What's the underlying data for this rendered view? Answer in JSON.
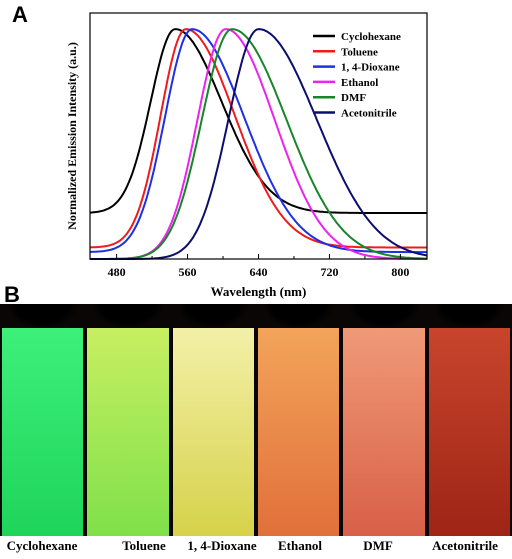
{
  "panel_a_label": "A",
  "panel_b_label": "B",
  "chart_data": {
    "type": "line",
    "title": "",
    "xlabel": "Wavelength (nm)",
    "ylabel": "Normalized Emission Intensity (a.u.)",
    "xlim": [
      450,
      830
    ],
    "ylim": [
      0,
      1.07
    ],
    "xticks": [
      480,
      560,
      640,
      720,
      800
    ],
    "grid": false,
    "legend_position": "top-right",
    "series": [
      {
        "name": "Cyclohexane",
        "color": "#000000",
        "peak": 546,
        "w_left": 39,
        "w_right": 74,
        "baseline": 0.2
      },
      {
        "name": "Toluene",
        "color": "#ee1c1c",
        "peak": 558,
        "w_left": 40,
        "w_right": 78,
        "baseline": 0.05
      },
      {
        "name": "1, 4-Dioxane",
        "color": "#1f2fe6",
        "peak": 565,
        "w_left": 43,
        "w_right": 83,
        "baseline": 0.03
      },
      {
        "name": "Ethanol",
        "color": "#ee22ee",
        "peak": 603,
        "w_left": 45,
        "w_right": 78,
        "baseline": 0.0
      },
      {
        "name": "DMF",
        "color": "#18852a",
        "peak": 610,
        "w_left": 48,
        "w_right": 87,
        "baseline": 0.0
      },
      {
        "name": "Acetonitrile",
        "color": "#0c0e6e",
        "peak": 640,
        "w_left": 48,
        "w_right": 93,
        "baseline": 0.0
      }
    ]
  },
  "vials": [
    {
      "label": "Cyclohexane",
      "color_top": "#3cf07a",
      "color_bottom": "#1fd45a"
    },
    {
      "label": "Toluene",
      "color_top": "#c8ef62",
      "color_bottom": "#7fe04a"
    },
    {
      "label": "1, 4-Dioxane",
      "color_top": "#f3f0a8",
      "color_bottom": "#d6d24a"
    },
    {
      "label": "Ethanol",
      "color_top": "#f3a45a",
      "color_bottom": "#e0703a"
    },
    {
      "label": "DMF",
      "color_top": "#f09a78",
      "color_bottom": "#d85f48"
    },
    {
      "label": "Acetonitrile",
      "color_top": "#c8452c",
      "color_bottom": "#9e2416"
    }
  ]
}
